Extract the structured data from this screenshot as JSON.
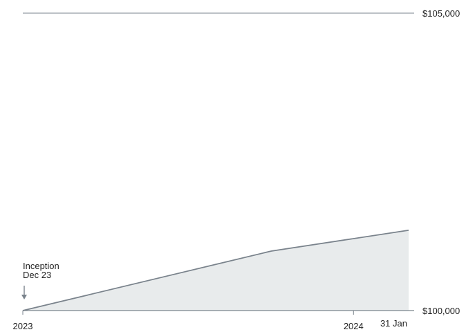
{
  "chart_data": {
    "type": "area",
    "title": "",
    "xlabel": "",
    "ylabel": "",
    "x": [
      "2023-12-01",
      "2024-09-01",
      "2025-01-31"
    ],
    "series": [
      {
        "values": [
          100000,
          101000,
          101350
        ]
      }
    ],
    "xlim": [
      "2023-12-01",
      "2025-01-31"
    ],
    "ylim": [
      100000,
      105000
    ],
    "x_ticks": [
      {
        "label": "2023",
        "date": "2023-12-01"
      },
      {
        "label": "2024",
        "date": "2024-12-01"
      },
      {
        "label": "31 Jan",
        "date": "2025-01-31"
      }
    ],
    "y_ticks": [
      {
        "label": "$100,000",
        "value": 100000
      },
      {
        "label": "$105,000",
        "value": 105000
      }
    ],
    "annotation": {
      "line1": "Inception",
      "line2": "Dec 23",
      "date": "2023-12-01"
    },
    "grid": false,
    "colors": {
      "line": "#7a838c",
      "fill": "#e8ebec",
      "axis": "#7a838c",
      "arrow": "#7a838c"
    }
  }
}
